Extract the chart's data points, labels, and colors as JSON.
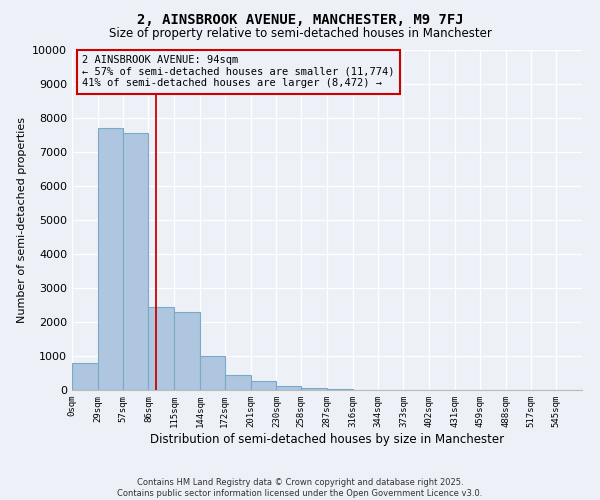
{
  "title": "2, AINSBROOK AVENUE, MANCHESTER, M9 7FJ",
  "subtitle": "Size of property relative to semi-detached houses in Manchester",
  "xlabel": "Distribution of semi-detached houses by size in Manchester",
  "ylabel": "Number of semi-detached properties",
  "bar_color": "#aec6e0",
  "bar_edge_color": "#7aaac8",
  "background_color": "#edf1f7",
  "property_size": 94,
  "annotation_title": "2 AINSBROOK AVENUE: 94sqm",
  "annotation_line1": "← 57% of semi-detached houses are smaller (11,774)",
  "annotation_line2": "41% of semi-detached houses are larger (8,472) →",
  "bin_edges": [
    0,
    29,
    57,
    86,
    115,
    144,
    172,
    201,
    230,
    258,
    287,
    316,
    344,
    373,
    402,
    431,
    459,
    488,
    517,
    545,
    574
  ],
  "bar_heights": [
    800,
    7700,
    7550,
    2450,
    2300,
    1000,
    450,
    275,
    130,
    50,
    20,
    8,
    4,
    2,
    1,
    1,
    1,
    1,
    1,
    1
  ],
  "ylim": [
    0,
    10000
  ],
  "yticks": [
    0,
    1000,
    2000,
    3000,
    4000,
    5000,
    6000,
    7000,
    8000,
    9000,
    10000
  ],
  "footer_line1": "Contains HM Land Registry data © Crown copyright and database right 2025.",
  "footer_line2": "Contains public sector information licensed under the Open Government Licence v3.0."
}
